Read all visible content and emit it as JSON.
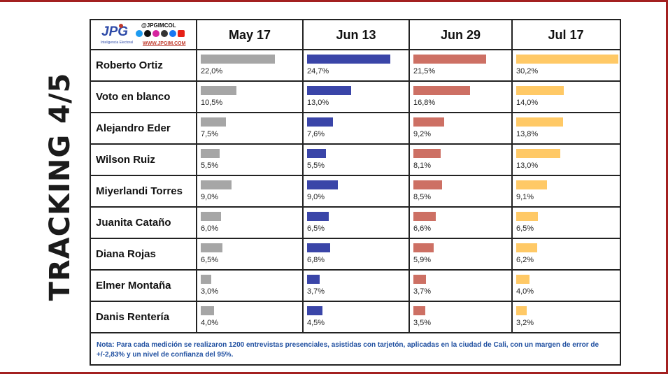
{
  "title": "TRACKING 4/5",
  "logo": {
    "brand": "JPG",
    "tagline": "Inteligencia Electoral",
    "handle": "@JPGIMCOL",
    "website": "WWW.JPGIM.COM",
    "social_icons": [
      "twitter-icon",
      "tiktok-icon",
      "instagram-icon",
      "threads-icon",
      "facebook-icon",
      "youtube-icon"
    ]
  },
  "chart_data": {
    "type": "bar",
    "categories": [
      "Roberto Ortiz",
      "Voto en blanco",
      "Alejandro Eder",
      "Wilson Ruiz",
      "Miyerlandi Torres",
      "Juanita Cataño",
      "Diana Rojas",
      "Elmer Montaña",
      "Danis Rentería"
    ],
    "series": [
      {
        "name": "May 17",
        "color": "#a6a6a6",
        "values": [
          22.0,
          10.5,
          7.5,
          5.5,
          9.0,
          6.0,
          6.5,
          3.0,
          4.0
        ],
        "labels": [
          "22,0%",
          "10,5%",
          "7,5%",
          "5,5%",
          "9,0%",
          "6,0%",
          "6,5%",
          "3,0%",
          "4,0%"
        ]
      },
      {
        "name": "Jun 13",
        "color": "#3a45a8",
        "values": [
          24.7,
          13.0,
          7.6,
          5.5,
          9.0,
          6.5,
          6.8,
          3.7,
          4.5
        ],
        "labels": [
          "24,7%",
          "13,0%",
          "7,6%",
          "5,5%",
          "9,0%",
          "6,5%",
          "6,8%",
          "3,7%",
          "4,5%"
        ]
      },
      {
        "name": "Jun 29",
        "color": "#cd7064",
        "values": [
          21.5,
          16.8,
          9.2,
          8.1,
          8.5,
          6.6,
          5.9,
          3.7,
          3.5
        ],
        "labels": [
          "21,5%",
          "16,8%",
          "9,2%",
          "8,1%",
          "8,5%",
          "6,6%",
          "5,9%",
          "3,7%",
          "3,5%"
        ]
      },
      {
        "name": "Jul 17",
        "color": "#ffc966",
        "values": [
          30.2,
          14.0,
          13.8,
          13.0,
          9.1,
          6.5,
          6.2,
          4.0,
          3.2
        ],
        "labels": [
          "30,2%",
          "14,0%",
          "13,8%",
          "13,0%",
          "9,1%",
          "6,5%",
          "6,2%",
          "4,0%",
          "3,2%"
        ]
      }
    ],
    "ylim": [
      0,
      30.2
    ]
  },
  "note": "Nota: Para cada medición se realizaron 1200 entrevistas presenciales, asistidas con tarjetón, aplicadas en la ciudad de Cali, con un margen de error de +/-2,83% y un nivel de confianza del 95%."
}
